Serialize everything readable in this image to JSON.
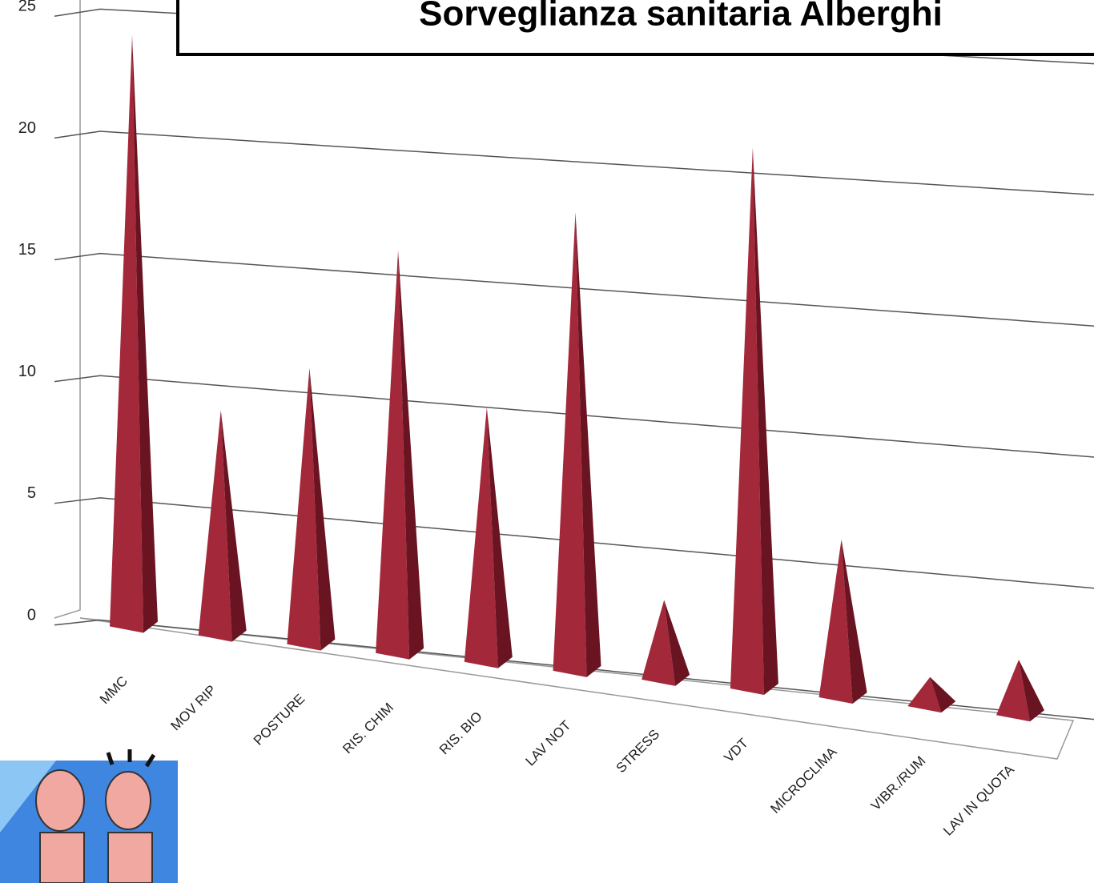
{
  "chart_data": {
    "type": "bar",
    "title": "Sorveglianza  sanitaria  Alberghi",
    "categories": [
      "MMC",
      "MOV RIP",
      "POSTURE",
      "RIS. CHIM",
      "RIS. BIO",
      "LAV NOT",
      "STRESS",
      "VDT",
      "MICROCLIMA",
      "VIBR./RUM",
      "LAV IN QUOTA"
    ],
    "values": [
      24,
      9,
      11,
      16,
      10,
      18,
      3,
      21,
      6,
      1,
      2
    ],
    "color": "#a3283a",
    "ylim": [
      0,
      25
    ],
    "yticks": [
      0,
      5,
      10,
      15,
      20,
      25
    ],
    "grid": true
  }
}
